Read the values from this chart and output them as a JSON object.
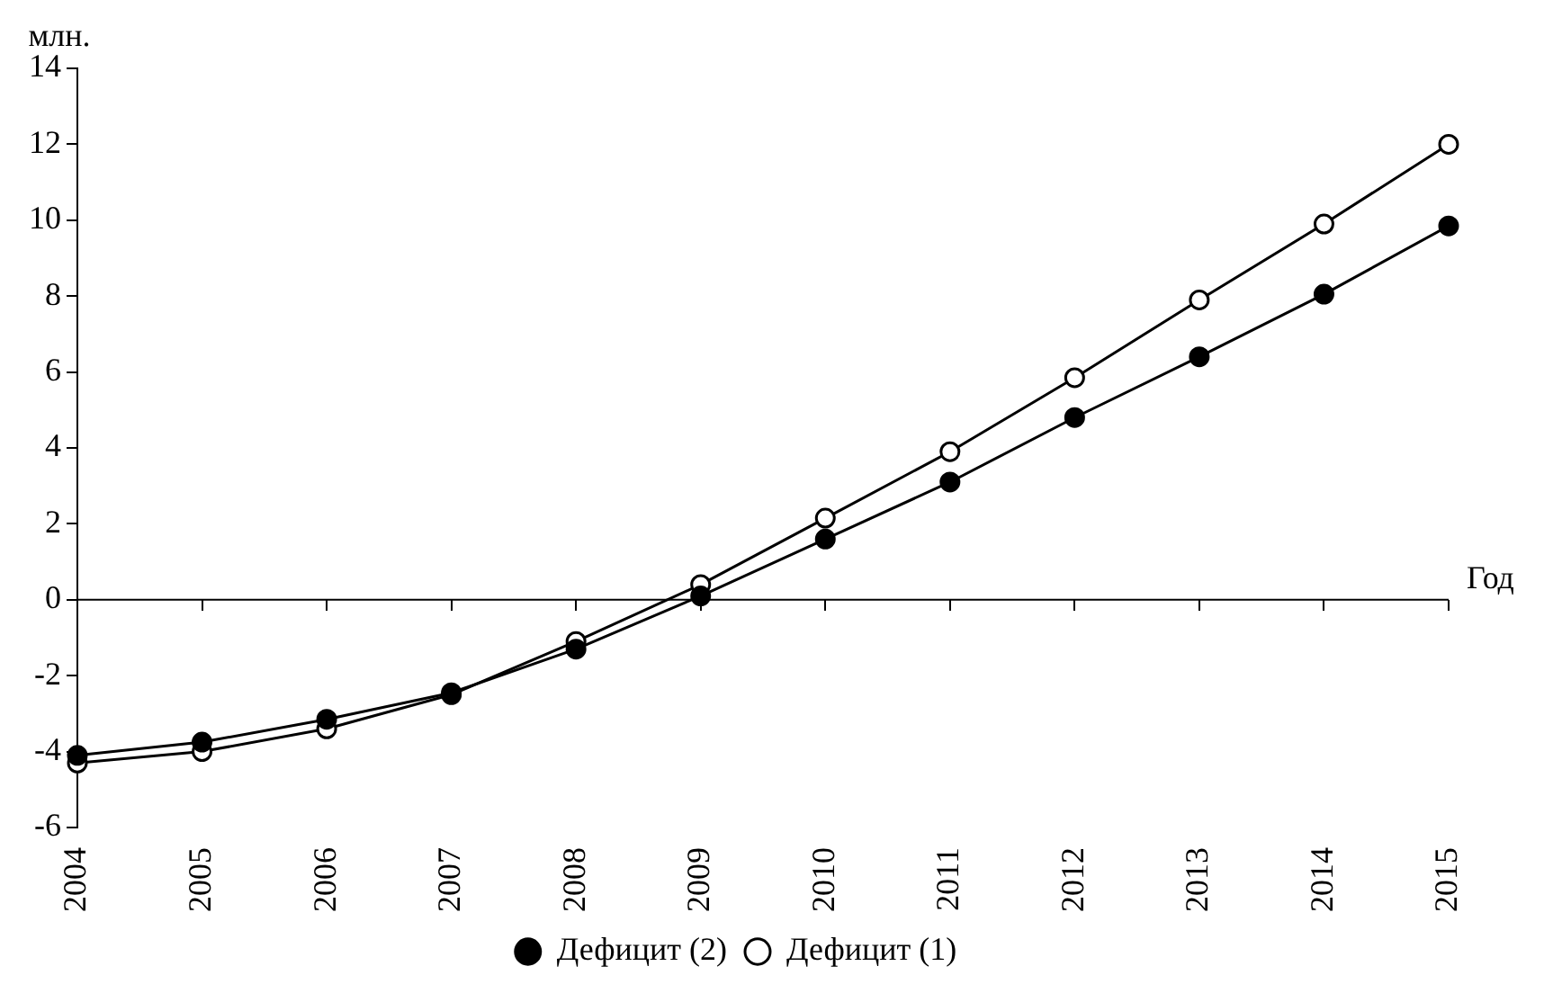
{
  "chart_data": {
    "type": "line",
    "ylabel": "млн.",
    "xlabel": "Год",
    "categories": [
      "2004",
      "2005",
      "2006",
      "2007",
      "2008",
      "2009",
      "2010",
      "2011",
      "2012",
      "2013",
      "2014",
      "2015"
    ],
    "series": [
      {
        "name": "Дефицит (1)",
        "color": "#000000",
        "values": [
          -4.3,
          -4.0,
          -3.4,
          -2.5,
          -1.1,
          0.4,
          2.15,
          3.9,
          5.85,
          7.9,
          9.9,
          12.0
        ]
      },
      {
        "name": "Дефицит (2)",
        "color": "#000000",
        "values": [
          -4.1,
          -3.75,
          -3.15,
          -2.45,
          -1.3,
          0.1,
          1.6,
          3.1,
          4.8,
          6.4,
          8.05,
          9.85
        ]
      }
    ],
    "ylim": [
      -6,
      14
    ],
    "yticks": [
      -6,
      -4,
      -2,
      0,
      2,
      4,
      6,
      8,
      10,
      12,
      14
    ],
    "grid": false,
    "ref_lines": [
      {
        "axis": "y",
        "value": 0
      }
    ],
    "legend": "bottom",
    "marker": "circle",
    "line_style": "solid"
  }
}
